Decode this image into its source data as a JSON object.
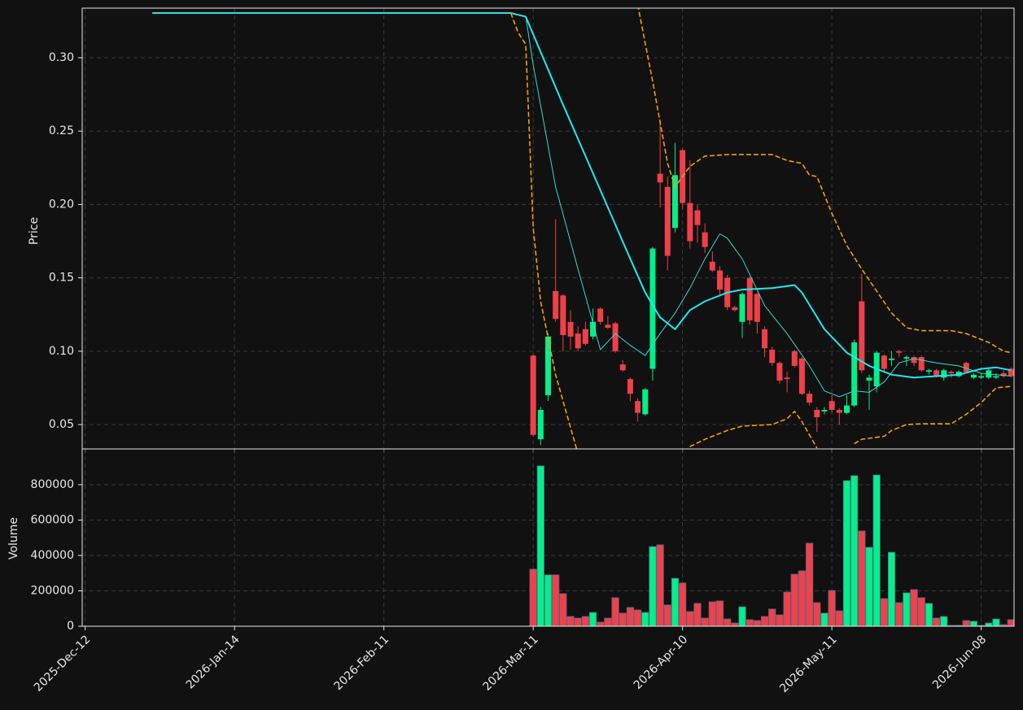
{
  "chart_data": [
    {
      "type": "candlestick",
      "ylabel": "Price",
      "xlim": [
        -0.4,
        124.4
      ],
      "ylim": [
        0.0334,
        0.3338
      ],
      "yticks": [
        0.05,
        {
          "value": 0.1,
          "label": "0.10"
        },
        0.15,
        {
          "value": 0.2,
          "label": "0.20"
        },
        0.25,
        {
          "value": 0.3,
          "label": "0.30"
        }
      ],
      "xticks": [
        0,
        20,
        40,
        60,
        80,
        100,
        120
      ],
      "grid": true,
      "up_color": "#00f08a",
      "down_color": "#f0404a",
      "x": [
        60,
        61,
        62,
        63,
        64,
        65,
        66,
        67,
        68,
        69,
        70,
        71,
        72,
        73,
        74,
        75,
        76,
        77,
        78,
        79,
        80,
        81,
        82,
        83,
        84,
        85,
        86,
        87,
        88,
        89,
        90,
        91,
        92,
        93,
        94,
        95,
        96,
        97,
        98,
        99,
        100,
        101,
        102,
        103,
        104,
        105,
        106,
        107,
        108,
        109,
        110,
        111,
        112,
        113,
        114,
        115,
        116,
        117,
        118,
        119,
        120,
        121,
        122,
        123,
        124
      ],
      "open": [
        0.097,
        0.04,
        0.07,
        0.141,
        0.138,
        0.12,
        0.112,
        0.115,
        0.11,
        0.129,
        0.118,
        0.119,
        0.091,
        0.081,
        0.066,
        0.057,
        0.088,
        0.221,
        0.212,
        0.184,
        0.237,
        0.201,
        0.196,
        0.181,
        0.161,
        0.155,
        0.15,
        0.13,
        0.12,
        0.15,
        0.139,
        0.115,
        0.101,
        0.092,
        0.082,
        0.1,
        0.095,
        0.071,
        0.06,
        0.059,
        0.066,
        0.06,
        0.058,
        0.063,
        0.134,
        0.08,
        0.076,
        0.097,
        0.094,
        0.1,
        0.095,
        0.096,
        0.096,
        0.086,
        0.087,
        0.082,
        0.086,
        0.083,
        0.092,
        0.082,
        0.082,
        0.082,
        0.082,
        0.085,
        0.088
      ],
      "high": [
        0.098,
        0.062,
        0.112,
        0.19,
        0.139,
        0.128,
        0.117,
        0.12,
        0.129,
        0.13,
        0.124,
        0.12,
        0.094,
        0.082,
        0.068,
        0.075,
        0.171,
        0.258,
        0.219,
        0.242,
        0.238,
        0.23,
        0.2,
        0.187,
        0.168,
        0.158,
        0.152,
        0.131,
        0.14,
        0.151,
        0.14,
        0.117,
        0.103,
        0.093,
        0.086,
        0.101,
        0.096,
        0.073,
        0.062,
        0.062,
        0.07,
        0.061,
        0.07,
        0.108,
        0.153,
        0.084,
        0.1,
        0.098,
        0.1,
        0.101,
        0.097,
        0.097,
        0.097,
        0.088,
        0.088,
        0.088,
        0.087,
        0.087,
        0.093,
        0.085,
        0.085,
        0.088,
        0.085,
        0.087,
        0.089
      ],
      "low": [
        0.042,
        0.036,
        0.066,
        0.12,
        0.1,
        0.101,
        0.1,
        0.104,
        0.108,
        0.118,
        0.115,
        0.099,
        0.086,
        0.066,
        0.052,
        0.056,
        0.08,
        0.198,
        0.155,
        0.181,
        0.197,
        0.17,
        0.174,
        0.167,
        0.154,
        0.138,
        0.128,
        0.127,
        0.109,
        0.118,
        0.112,
        0.096,
        0.09,
        0.078,
        0.072,
        0.089,
        0.07,
        0.063,
        0.045,
        0.057,
        0.058,
        0.05,
        0.057,
        0.062,
        0.085,
        0.06,
        0.072,
        0.086,
        0.09,
        0.096,
        0.09,
        0.09,
        0.086,
        0.084,
        0.082,
        0.08,
        0.082,
        0.082,
        0.085,
        0.081,
        0.081,
        0.081,
        0.081,
        0.082,
        0.082
      ],
      "close": [
        0.043,
        0.06,
        0.11,
        0.122,
        0.111,
        0.11,
        0.102,
        0.105,
        0.12,
        0.12,
        0.116,
        0.1,
        0.087,
        0.071,
        0.058,
        0.074,
        0.17,
        0.215,
        0.165,
        0.22,
        0.201,
        0.175,
        0.186,
        0.171,
        0.155,
        0.142,
        0.13,
        0.128,
        0.139,
        0.121,
        0.12,
        0.102,
        0.092,
        0.08,
        0.081,
        0.09,
        0.071,
        0.065,
        0.055,
        0.06,
        0.06,
        0.058,
        0.063,
        0.106,
        0.087,
        0.082,
        0.099,
        0.088,
        0.095,
        0.099,
        0.096,
        0.092,
        0.087,
        0.087,
        0.083,
        0.087,
        0.085,
        0.086,
        0.086,
        0.084,
        0.083,
        0.087,
        0.083,
        0.083,
        0.083
      ],
      "series": [
        {
          "color": "#1ee8f0",
          "width": 2,
          "dash": false,
          "x": [
            9,
            57,
            59,
            61,
            64,
            67,
            70,
            73,
            75,
            77,
            79,
            81,
            83,
            86,
            88,
            92,
            95,
            96,
            99,
            102,
            105,
            108,
            111,
            114,
            117,
            120,
            122,
            124
          ],
          "values": [
            0.3305,
            0.3305,
            0.328,
            0.304,
            0.268,
            0.233,
            0.198,
            0.163,
            0.14,
            0.123,
            0.115,
            0.128,
            0.134,
            0.14,
            0.142,
            0.143,
            0.145,
            0.14,
            0.115,
            0.099,
            0.09,
            0.084,
            0.082,
            0.083,
            0.084,
            0.088,
            0.089,
            0.087
          ]
        },
        {
          "color": "#3ad8d0",
          "width": 1,
          "dash": false,
          "x": [
            9,
            57,
            59,
            60,
            63,
            66,
            69,
            71,
            73,
            75,
            77,
            79,
            81,
            83,
            85,
            86,
            88,
            91,
            94,
            97,
            99,
            101,
            103,
            105,
            107,
            109,
            111,
            114,
            117,
            120,
            124
          ],
          "values": [
            0.3305,
            0.3305,
            0.328,
            0.295,
            0.212,
            0.156,
            0.101,
            0.112,
            0.104,
            0.097,
            0.112,
            0.126,
            0.143,
            0.163,
            0.18,
            0.177,
            0.163,
            0.131,
            0.112,
            0.09,
            0.073,
            0.069,
            0.073,
            0.072,
            0.079,
            0.092,
            0.095,
            0.092,
            0.09,
            0.085,
            0.083
          ]
        },
        {
          "color": "#f5a000",
          "width": 1.6,
          "dash": true,
          "x": [
            74,
            76,
            78,
            79,
            81,
            83,
            86,
            92,
            94,
            96,
            97,
            98,
            100,
            102,
            104,
            106,
            108,
            110,
            112,
            116,
            118,
            121,
            123,
            124
          ],
          "values": [
            0.336,
            0.284,
            0.228,
            0.212,
            0.226,
            0.233,
            0.234,
            0.234,
            0.23,
            0.228,
            0.22,
            0.219,
            0.194,
            0.172,
            0.156,
            0.141,
            0.126,
            0.116,
            0.114,
            0.114,
            0.112,
            0.106,
            0.1,
            0.099
          ]
        },
        {
          "color": "#f5a000",
          "width": 1.6,
          "dash": true,
          "x": [
            57,
            58,
            59,
            60,
            61,
            63,
            66,
            70,
            81,
            83,
            86,
            88,
            92,
            94,
            95,
            96,
            98,
            100,
            103,
            104,
            107,
            108,
            110,
            112,
            116,
            118,
            120,
            122,
            124
          ],
          "values": [
            0.3305,
            0.317,
            0.309,
            0.184,
            0.134,
            0.084,
            0.03,
            null,
            0.035,
            0.04,
            0.046,
            0.049,
            0.05,
            0.054,
            0.059,
            0.052,
            0.034,
            null,
            0.037,
            0.04,
            0.042,
            0.046,
            0.05,
            0.0505,
            0.0505,
            0.057,
            0.065,
            0.075,
            0.076
          ]
        }
      ]
    },
    {
      "type": "bar",
      "ylabel": "Volume",
      "xlim": [
        -0.4,
        124.4
      ],
      "ylim": [
        0,
        1002000
      ],
      "yticks": [
        0,
        200000,
        400000,
        600000,
        800000
      ],
      "xticks": [
        {
          "value": 0,
          "label": "2025-Dec-12"
        },
        {
          "value": 20,
          "label": "2026-Jan-14"
        },
        {
          "value": 40,
          "label": "2026-Feb-11"
        },
        {
          "value": 60,
          "label": "2026-Mar-11"
        },
        {
          "value": 80,
          "label": "2026-Apr-10"
        },
        {
          "value": 100,
          "label": "2026-May-11"
        },
        {
          "value": 120,
          "label": "2026-Jun-08"
        }
      ],
      "grid": true,
      "up_color": "#00f08a",
      "down_color": "#f0404a",
      "x": [
        60,
        61,
        62,
        63,
        64,
        65,
        66,
        67,
        68,
        69,
        70,
        71,
        72,
        73,
        74,
        75,
        76,
        77,
        78,
        79,
        80,
        81,
        82,
        83,
        84,
        85,
        86,
        87,
        88,
        89,
        90,
        91,
        92,
        93,
        94,
        95,
        96,
        97,
        98,
        99,
        100,
        101,
        102,
        103,
        104,
        105,
        106,
        107,
        108,
        109,
        110,
        111,
        112,
        113,
        114,
        115,
        116,
        117,
        118,
        119,
        120,
        121,
        122,
        123,
        124
      ],
      "values": [
        322000,
        906000,
        290000,
        290000,
        184000,
        55000,
        46000,
        55000,
        78000,
        23000,
        46000,
        161000,
        74000,
        106000,
        92000,
        78000,
        450000,
        460000,
        120000,
        271000,
        244000,
        83000,
        129000,
        46000,
        138000,
        143000,
        41000,
        18000,
        110000,
        37000,
        32000,
        55000,
        97000,
        64000,
        193000,
        294000,
        313000,
        469000,
        133000,
        74000,
        202000,
        87000,
        823000,
        851000,
        538000,
        446000,
        855000,
        156000,
        418000,
        133000,
        189000,
        207000,
        161000,
        129000,
        46000,
        55000,
        5000,
        5000,
        32000,
        28000,
        5000,
        18000,
        41000,
        9000,
        37000
      ]
    }
  ]
}
